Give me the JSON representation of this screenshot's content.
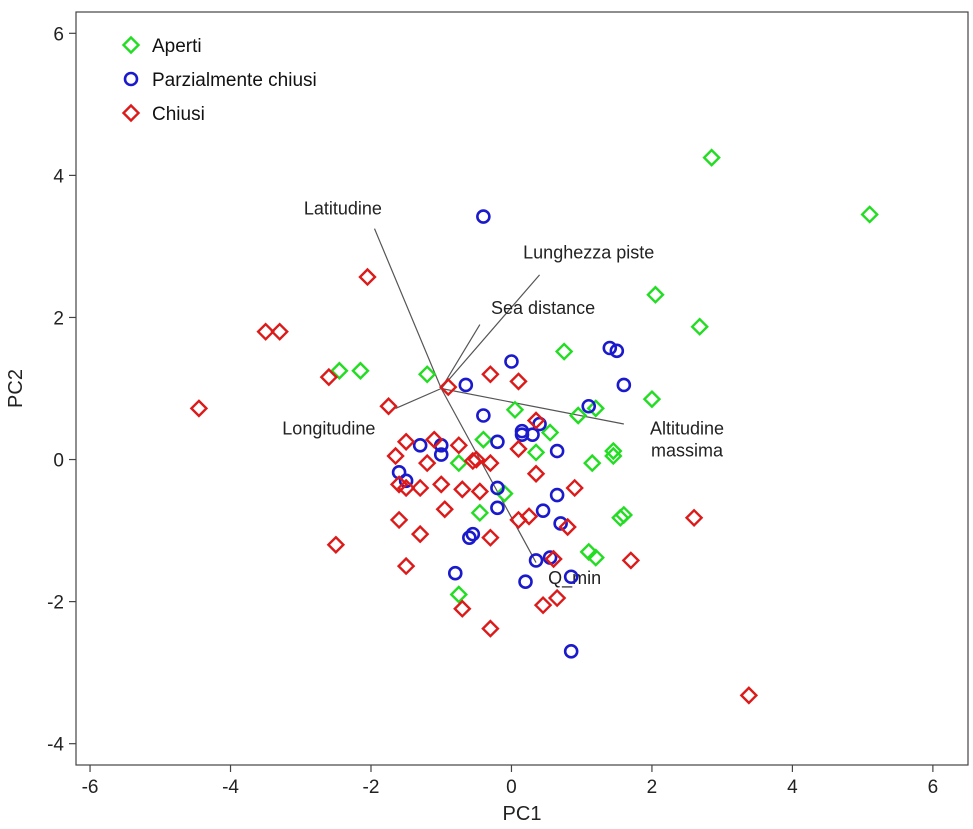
{
  "chart_data": {
    "type": "scatter",
    "title": "",
    "xlabel": "PC1",
    "ylabel": "PC2",
    "xlim": [
      -6.2,
      6.5
    ],
    "ylim": [
      -4.3,
      6.3
    ],
    "xticks": [
      -6,
      -4,
      -2,
      0,
      2,
      4,
      6
    ],
    "yticks": [
      -4,
      -2,
      0,
      2,
      4,
      6
    ],
    "legend_position": "top-left",
    "colors": {
      "Aperti": "#22dd22",
      "Parzialmente chiusi": "#1a1acc",
      "Chiusi": "#dd1a1a",
      "loading": "#555555"
    },
    "series": [
      {
        "name": "Aperti",
        "marker": "diamond",
        "points": [
          [
            2.85,
            4.25
          ],
          [
            5.1,
            3.45
          ],
          [
            2.05,
            2.32
          ],
          [
            2.68,
            1.87
          ],
          [
            0.75,
            1.52
          ],
          [
            -2.45,
            1.25
          ],
          [
            -2.15,
            1.25
          ],
          [
            -1.2,
            1.2
          ],
          [
            2.0,
            0.85
          ],
          [
            1.2,
            0.72
          ],
          [
            0.05,
            0.7
          ],
          [
            0.95,
            0.62
          ],
          [
            0.55,
            0.38
          ],
          [
            -0.4,
            0.28
          ],
          [
            1.45,
            0.12
          ],
          [
            0.35,
            0.1
          ],
          [
            1.45,
            0.05
          ],
          [
            1.15,
            -0.05
          ],
          [
            -0.75,
            -0.05
          ],
          [
            -0.1,
            -0.48
          ],
          [
            -0.45,
            -0.75
          ],
          [
            1.6,
            -0.78
          ],
          [
            1.55,
            -0.82
          ],
          [
            1.1,
            -1.3
          ],
          [
            1.2,
            -1.38
          ],
          [
            -0.75,
            -1.9
          ]
        ]
      },
      {
        "name": "Parzialmente chiusi",
        "marker": "circle",
        "points": [
          [
            -0.4,
            3.42
          ],
          [
            1.4,
            1.57
          ],
          [
            1.5,
            1.53
          ],
          [
            0.0,
            1.38
          ],
          [
            1.6,
            1.05
          ],
          [
            -0.65,
            1.05
          ],
          [
            1.1,
            0.75
          ],
          [
            -0.4,
            0.62
          ],
          [
            0.4,
            0.5
          ],
          [
            0.15,
            0.4
          ],
          [
            0.15,
            0.35
          ],
          [
            0.3,
            0.35
          ],
          [
            -1.0,
            0.2
          ],
          [
            -1.3,
            0.2
          ],
          [
            -0.2,
            0.25
          ],
          [
            -1.0,
            0.07
          ],
          [
            0.65,
            0.12
          ],
          [
            -1.6,
            -0.18
          ],
          [
            -1.5,
            -0.3
          ],
          [
            -0.2,
            -0.4
          ],
          [
            0.65,
            -0.5
          ],
          [
            -0.2,
            -0.68
          ],
          [
            0.45,
            -0.72
          ],
          [
            0.7,
            -0.9
          ],
          [
            -0.6,
            -1.1
          ],
          [
            -0.55,
            -1.05
          ],
          [
            0.55,
            -1.38
          ],
          [
            0.35,
            -1.42
          ],
          [
            -0.8,
            -1.6
          ],
          [
            0.85,
            -1.65
          ],
          [
            0.2,
            -1.72
          ],
          [
            0.85,
            -2.7
          ]
        ]
      },
      {
        "name": "Chiusi",
        "marker": "diamond",
        "points": [
          [
            -2.05,
            2.57
          ],
          [
            -3.5,
            1.8
          ],
          [
            -3.3,
            1.8
          ],
          [
            -2.6,
            1.16
          ],
          [
            -0.3,
            1.2
          ],
          [
            0.1,
            1.1
          ],
          [
            -0.9,
            1.02
          ],
          [
            -4.45,
            0.72
          ],
          [
            -1.75,
            0.75
          ],
          [
            0.35,
            0.55
          ],
          [
            -1.5,
            0.25
          ],
          [
            -1.1,
            0.28
          ],
          [
            -0.75,
            0.2
          ],
          [
            -0.5,
            0.0
          ],
          [
            -0.55,
            -0.02
          ],
          [
            0.1,
            0.15
          ],
          [
            -1.65,
            0.05
          ],
          [
            -1.2,
            -0.05
          ],
          [
            -0.3,
            -0.05
          ],
          [
            0.35,
            -0.2
          ],
          [
            -1.6,
            -0.35
          ],
          [
            -1.0,
            -0.35
          ],
          [
            -1.5,
            -0.4
          ],
          [
            -1.3,
            -0.4
          ],
          [
            -0.7,
            -0.42
          ],
          [
            -0.45,
            -0.45
          ],
          [
            0.9,
            -0.4
          ],
          [
            -0.95,
            -0.7
          ],
          [
            -1.6,
            -0.85
          ],
          [
            0.25,
            -0.8
          ],
          [
            0.1,
            -0.85
          ],
          [
            0.8,
            -0.95
          ],
          [
            2.6,
            -0.82
          ],
          [
            -1.3,
            -1.05
          ],
          [
            -2.5,
            -1.2
          ],
          [
            -0.3,
            -1.1
          ],
          [
            0.6,
            -1.4
          ],
          [
            1.7,
            -1.42
          ],
          [
            -1.5,
            -1.5
          ],
          [
            0.65,
            -1.95
          ],
          [
            0.45,
            -2.05
          ],
          [
            -0.7,
            -2.1
          ],
          [
            -0.3,
            -2.38
          ],
          [
            3.38,
            -3.32
          ]
        ]
      }
    ],
    "loadings": [
      {
        "label": "Latitudine",
        "from": [
          -1.0,
          1.0
        ],
        "to": [
          -1.95,
          3.25
        ],
        "label_lines": [
          "Latitudine"
        ],
        "label_at": [
          -2.4,
          3.45
        ],
        "anchor": "middle"
      },
      {
        "label": "Lunghezza piste",
        "from": [
          -1.0,
          1.0
        ],
        "to": [
          0.4,
          2.6
        ],
        "label_lines": [
          "Lunghezza piste"
        ],
        "label_at": [
          1.1,
          2.83
        ],
        "anchor": "middle"
      },
      {
        "label": "Sea distance",
        "from": [
          -1.0,
          1.0
        ],
        "to": [
          -0.45,
          1.9
        ],
        "label_lines": [
          "Sea distance"
        ],
        "label_at": [
          0.45,
          2.05
        ],
        "anchor": "middle"
      },
      {
        "label": "Longitudine",
        "from": [
          -1.0,
          1.0
        ],
        "to": [
          -1.65,
          0.72
        ],
        "label_lines": [
          "Longitudine"
        ],
        "label_at": [
          -2.6,
          0.35
        ],
        "anchor": "middle"
      },
      {
        "label": "Altitudine massima",
        "from": [
          -1.0,
          1.0
        ],
        "to": [
          1.6,
          0.5
        ],
        "label_lines": [
          "Altitudine",
          "massima"
        ],
        "label_at": [
          2.5,
          0.35
        ],
        "anchor": "middle"
      },
      {
        "label": "Q_min",
        "from": [
          -1.0,
          1.0
        ],
        "to": [
          0.35,
          -1.45
        ],
        "label_lines": [
          "Q_min"
        ],
        "label_at": [
          0.9,
          -1.75
        ],
        "anchor": "middle"
      }
    ]
  }
}
